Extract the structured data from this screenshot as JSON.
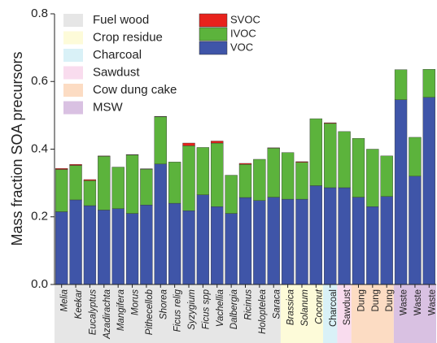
{
  "chart_data": {
    "type": "stacked_bar",
    "y_label": "Mass fraction SOA precursors",
    "ylim": [
      0,
      0.8
    ],
    "yticks": [
      {
        "value": 0,
        "label": "0.0"
      },
      {
        "value": 0.2,
        "label": "0.2"
      },
      {
        "value": 0.4,
        "label": "0.4"
      },
      {
        "value": 0.6,
        "label": "0.6"
      },
      {
        "value": 0.8,
        "label": "0.8"
      }
    ],
    "groups": [
      {
        "name": "Fuel wood",
        "color": "#e6e6e6",
        "italic": true,
        "categories": [
          "Melia",
          "Keekar",
          "Eucalyptus",
          "Azadirachta",
          "Mangifera",
          "Morus",
          "Pithecellob",
          "Shorea",
          "Ficus relig",
          "Syzygium",
          "Ficus spp",
          "Vachellia",
          "Dalbergia",
          "Ricinus",
          "Holoptelea",
          "Saraca"
        ]
      },
      {
        "name": "Crop residue",
        "color": "#fdfbd9",
        "italic": true,
        "categories": [
          "Brassica",
          "Solanum",
          "Coconut"
        ]
      },
      {
        "name": "Charcoal",
        "color": "#d9f1f7",
        "italic": false,
        "categories": [
          "Charcoal"
        ]
      },
      {
        "name": "Sawdust",
        "color": "#f9dcee",
        "italic": false,
        "categories": [
          "Sawdust"
        ]
      },
      {
        "name": "Cow dung cake",
        "color": "#fcdcc3",
        "italic": false,
        "categories": [
          "Dung",
          "Dung",
          "Dung"
        ]
      },
      {
        "name": "MSW",
        "color": "#d9c1e2",
        "italic": false,
        "categories": [
          "Waste",
          "Waste",
          "Waste"
        ]
      }
    ],
    "series": [
      {
        "name": "VOC",
        "color": "#3f55a8",
        "values": [
          0.215,
          0.25,
          0.233,
          0.22,
          0.224,
          0.21,
          0.235,
          0.356,
          0.24,
          0.218,
          0.265,
          0.23,
          0.21,
          0.257,
          0.248,
          0.258,
          0.252,
          0.252,
          0.292,
          0.286,
          0.286,
          0.258,
          0.23,
          0.26,
          0.546,
          0.32,
          0.553
        ]
      },
      {
        "name": "IVOC",
        "color": "#5cb33c",
        "values": [
          0.125,
          0.102,
          0.074,
          0.159,
          0.123,
          0.173,
          0.106,
          0.14,
          0.122,
          0.192,
          0.14,
          0.188,
          0.113,
          0.098,
          0.122,
          0.145,
          0.138,
          0.109,
          0.198,
          0.19,
          0.166,
          0.174,
          0.17,
          0.12,
          0.089,
          0.115,
          0.083
        ]
      },
      {
        "name": "SVOC",
        "color": "#e8221c",
        "values": [
          0.003,
          0.003,
          0.003,
          0.001,
          0,
          0.001,
          0.001,
          0.001,
          0,
          0.008,
          0,
          0.006,
          0,
          0.003,
          0,
          0.001,
          0,
          0.002,
          0,
          0.002,
          0,
          0,
          0,
          0,
          0,
          0,
          0
        ]
      }
    ]
  }
}
